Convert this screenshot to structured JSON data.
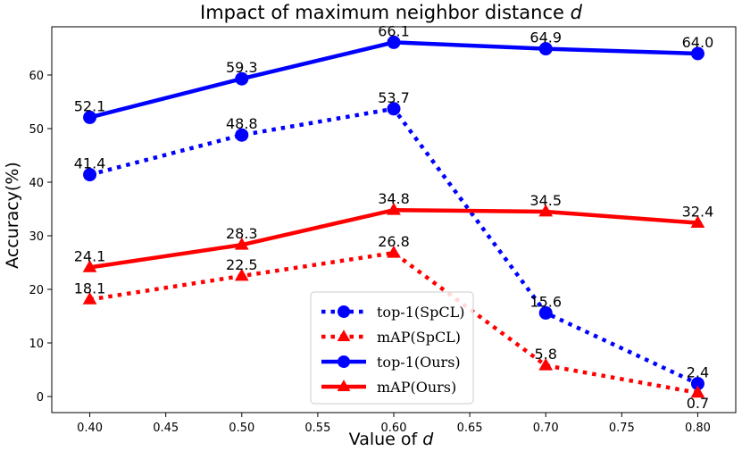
{
  "chart_data": {
    "type": "line",
    "title": "Impact of maximum neighbor distance",
    "title_var": "d",
    "xlabel": "Value of",
    "xlabel_var": "d",
    "ylabel": "Accuracy(%)",
    "x": [
      0.4,
      0.5,
      0.6,
      0.7,
      0.8
    ],
    "xlim": [
      0.375,
      0.825
    ],
    "ylim": [
      -3,
      69
    ],
    "xticks": [
      "0.40",
      "0.45",
      "0.50",
      "0.55",
      "0.60",
      "0.65",
      "0.70",
      "0.75",
      "0.80"
    ],
    "xtick_values": [
      0.4,
      0.45,
      0.5,
      0.55,
      0.6,
      0.65,
      0.7,
      0.75,
      0.8
    ],
    "yticks": [
      "0",
      "10",
      "20",
      "30",
      "40",
      "50",
      "60"
    ],
    "ytick_values": [
      0,
      10,
      20,
      30,
      40,
      50,
      60
    ],
    "grid": false,
    "legend_position": "lower-center",
    "series": [
      {
        "name": "top-1(SpCL)",
        "values": [
          41.4,
          48.8,
          53.7,
          15.6,
          2.4
        ],
        "labels": [
          "41.4",
          "48.8",
          "53.7",
          "15.6",
          "2.4"
        ],
        "color": "#0000ff",
        "linestyle": "dotted",
        "marker": "circle"
      },
      {
        "name": "mAP(SpCL)",
        "values": [
          18.1,
          22.5,
          26.8,
          5.8,
          0.7
        ],
        "labels": [
          "18.1",
          "22.5",
          "26.8",
          "5.8",
          "0.7"
        ],
        "color": "#ff0000",
        "linestyle": "dotted",
        "marker": "triangle"
      },
      {
        "name": "top-1(Ours)",
        "values": [
          52.1,
          59.3,
          66.1,
          64.9,
          64.0
        ],
        "labels": [
          "52.1",
          "59.3",
          "66.1",
          "64.9",
          "64.0"
        ],
        "color": "#0000ff",
        "linestyle": "solid",
        "marker": "circle"
      },
      {
        "name": "mAP(Ours)",
        "values": [
          24.1,
          28.3,
          34.8,
          34.5,
          32.4
        ],
        "labels": [
          "24.1",
          "28.3",
          "34.8",
          "34.5",
          "32.4"
        ],
        "color": "#ff0000",
        "linestyle": "solid",
        "marker": "triangle"
      }
    ]
  }
}
